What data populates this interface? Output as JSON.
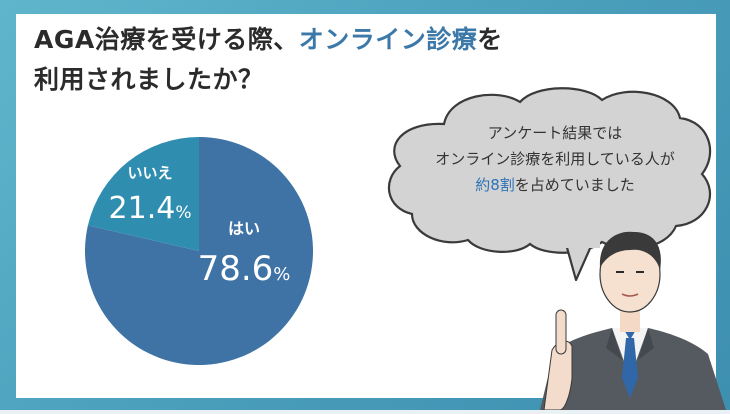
{
  "title": {
    "line1_pre": "AGA治療を受ける際、",
    "line1_accent": "オンライン診療",
    "line1_post": "を",
    "line2": "利用されましたか？"
  },
  "colors": {
    "primary_slice": "#3f73a6",
    "secondary_slice": "#2f8eb0",
    "accent_text": "#3c79a8"
  },
  "chart_data": {
    "type": "pie",
    "slices": [
      {
        "label": "はい",
        "value": 78.6,
        "display": "78.6",
        "unit": "%",
        "color": "#3f73a6"
      },
      {
        "label": "いいえ",
        "value": 21.4,
        "display": "21.4",
        "unit": "%",
        "color": "#2f8eb0"
      }
    ]
  },
  "bubble": {
    "line1": "アンケート結果では",
    "line2": "オンライン診療を利用している人が",
    "line3_accent": "約8割",
    "line3_post": "を占めていました"
  }
}
